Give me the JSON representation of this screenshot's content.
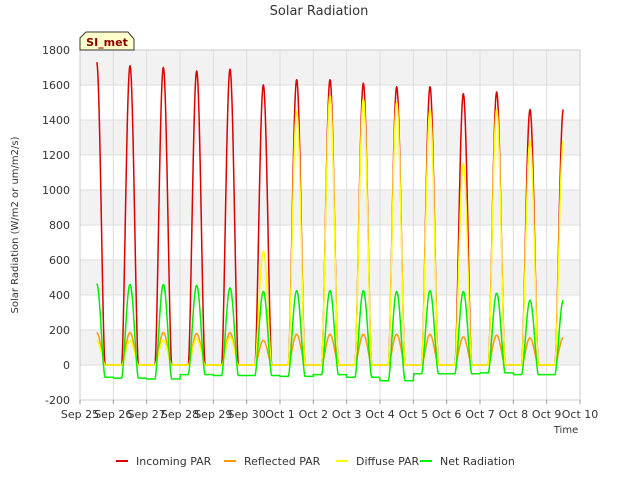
{
  "chart_data": {
    "type": "line",
    "title": "Solar Radiation",
    "xlabel": "Time",
    "ylabel": "Solar Radiation (W/m2 or um/m2/s)",
    "station_badge": "SI_met",
    "ylim": [
      -200,
      1800
    ],
    "yticks": [
      -200,
      0,
      200,
      400,
      600,
      800,
      1000,
      1200,
      1400,
      1600,
      1800
    ],
    "xlim": [
      0,
      15
    ],
    "xticks": [
      "Sep 25",
      "Sep 26",
      "Sep 27",
      "Sep 28",
      "Sep 29",
      "Sep 30",
      "Oct 1",
      "Oct 2",
      "Oct 3",
      "Oct 4",
      "Oct 5",
      "Oct 6",
      "Oct 7",
      "Oct 8",
      "Oct 9",
      "Oct 10"
    ],
    "data_range_days": [
      0.5,
      14.5
    ],
    "daytime_window": [
      0.25,
      0.75
    ],
    "series": [
      {
        "name": "Incoming PAR",
        "color": "#dd0000",
        "night_value": 0,
        "daily_peaks": [
          1730,
          1710,
          1700,
          1680,
          1690,
          1600,
          1630,
          1630,
          1610,
          1590,
          1590,
          1550,
          1560,
          1460
        ]
      },
      {
        "name": "Reflected PAR",
        "color": "#ff9900",
        "night_value": 0,
        "daily_peaks": [
          185,
          185,
          185,
          180,
          185,
          140,
          175,
          175,
          175,
          175,
          175,
          160,
          170,
          155
        ]
      },
      {
        "name": "Diffuse PAR",
        "color": "#ffff00",
        "night_value": 0,
        "daily_peaks": [
          140,
          140,
          140,
          150,
          160,
          650,
          1450,
          1540,
          1520,
          1500,
          1460,
          1150,
          1460,
          1280
        ]
      },
      {
        "name": "Net Radiation",
        "color": "#00ee00",
        "night_value": -70,
        "daily_peaks": [
          465,
          460,
          460,
          455,
          440,
          420,
          425,
          425,
          425,
          420,
          425,
          420,
          410,
          370
        ],
        "daily_night_values": [
          -70,
          -75,
          -80,
          -55,
          -60,
          -60,
          -65,
          -55,
          -70,
          -90,
          -50,
          -50,
          -45,
          -55
        ]
      }
    ]
  }
}
